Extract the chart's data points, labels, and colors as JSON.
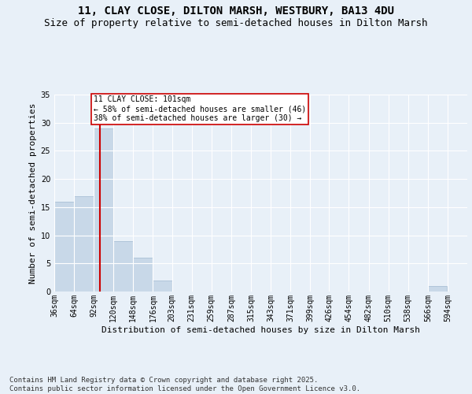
{
  "title1": "11, CLAY CLOSE, DILTON MARSH, WESTBURY, BA13 4DU",
  "title2": "Size of property relative to semi-detached houses in Dilton Marsh",
  "xlabel": "Distribution of semi-detached houses by size in Dilton Marsh",
  "ylabel": "Number of semi-detached properties",
  "footnote": "Contains HM Land Registry data © Crown copyright and database right 2025.\nContains public sector information licensed under the Open Government Licence v3.0.",
  "bin_labels": [
    "36sqm",
    "64sqm",
    "92sqm",
    "120sqm",
    "148sqm",
    "176sqm",
    "203sqm",
    "231sqm",
    "259sqm",
    "287sqm",
    "315sqm",
    "343sqm",
    "371sqm",
    "399sqm",
    "426sqm",
    "454sqm",
    "482sqm",
    "510sqm",
    "538sqm",
    "566sqm",
    "594sqm"
  ],
  "bin_edges": [
    36,
    64,
    92,
    120,
    148,
    176,
    203,
    231,
    259,
    287,
    315,
    343,
    371,
    399,
    426,
    454,
    482,
    510,
    538,
    566,
    594
  ],
  "bin_width": 28,
  "counts": [
    16,
    17,
    29,
    9,
    6,
    2,
    0,
    0,
    0,
    0,
    0,
    0,
    0,
    0,
    0,
    0,
    0,
    0,
    0,
    1,
    0
  ],
  "bar_color": "#c8d8e8",
  "bar_edge_color": "#a0b8d0",
  "property_size": 101,
  "vline_color": "#cc0000",
  "annotation_text": "11 CLAY CLOSE: 101sqm\n← 58% of semi-detached houses are smaller (46)\n38% of semi-detached houses are larger (30) →",
  "annotation_box_color": "#ffffff",
  "annotation_box_edge": "#cc0000",
  "ylim": [
    0,
    35
  ],
  "yticks": [
    0,
    5,
    10,
    15,
    20,
    25,
    30,
    35
  ],
  "bg_color": "#e8f0f8",
  "plot_bg_color": "#e8f0f8",
  "grid_color": "#ffffff",
  "title1_fontsize": 10,
  "title2_fontsize": 9,
  "axis_fontsize": 8,
  "tick_fontsize": 7,
  "annot_fontsize": 7,
  "footnote_fontsize": 6.5
}
